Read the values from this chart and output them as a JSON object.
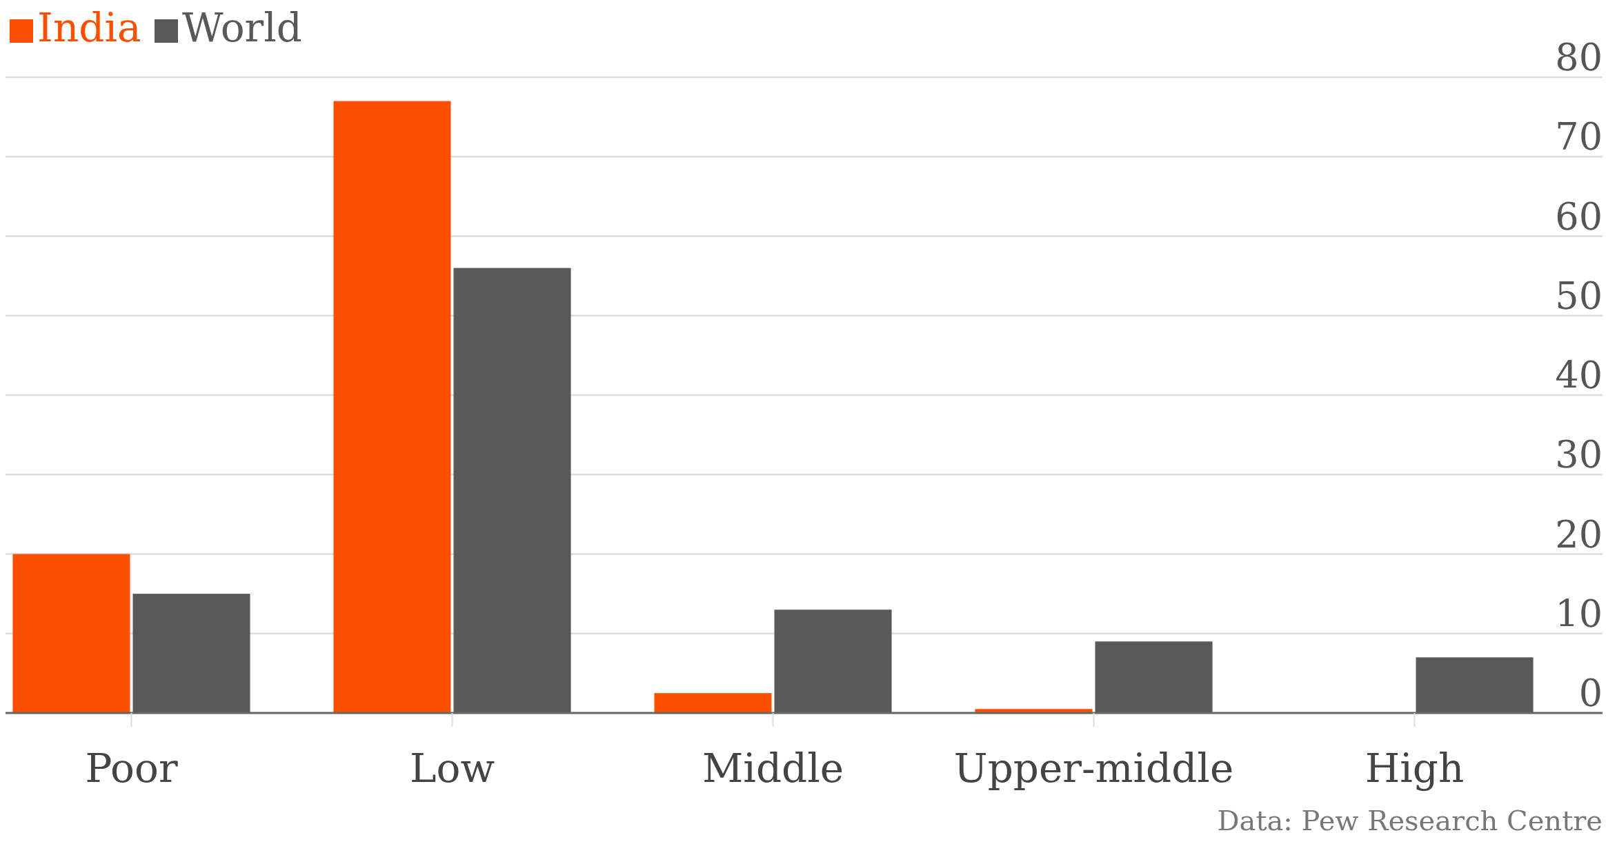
{
  "chart_data": {
    "type": "bar",
    "categories": [
      "Poor",
      "Low",
      "Middle",
      "Upper-middle",
      "High"
    ],
    "series": [
      {
        "name": "India",
        "color": "#fc5000",
        "values": [
          20,
          77,
          2.5,
          0.5,
          0
        ]
      },
      {
        "name": "World",
        "color": "#595959",
        "values": [
          15,
          56,
          13,
          9,
          7
        ]
      }
    ],
    "ylim": [
      0,
      80
    ],
    "yticks": [
      0,
      10,
      20,
      30,
      40,
      50,
      60,
      70,
      80
    ],
    "grid": "y",
    "legend": "top left",
    "annotations": [
      "Data: Pew Research Centre"
    ]
  }
}
